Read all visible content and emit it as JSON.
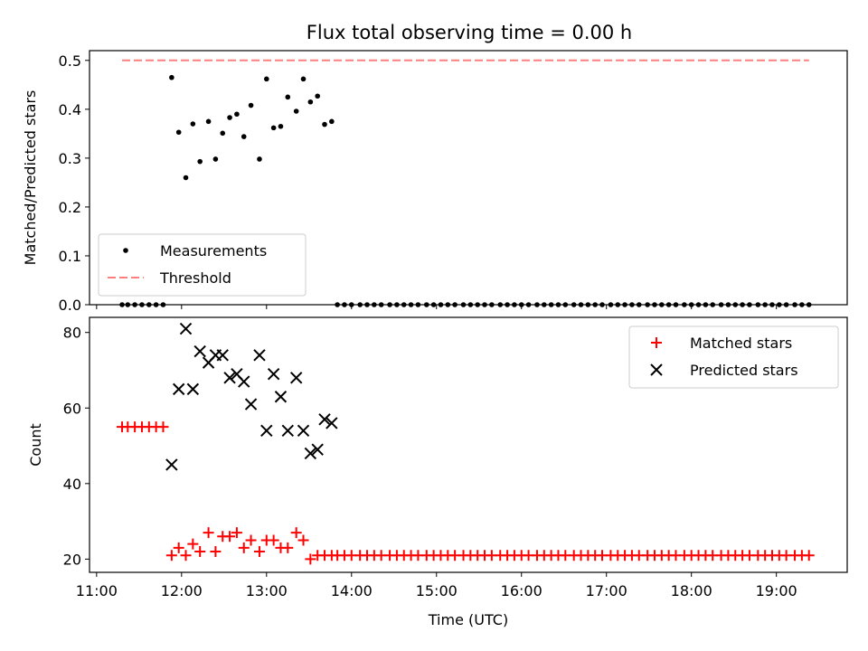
{
  "title": "Flux total observing time = 0.00 h",
  "colors": {
    "measurement": "#000000",
    "threshold": "#ff7f7f",
    "matched": "#ff0000",
    "predicted": "#000000"
  },
  "chart_data": [
    {
      "type": "scatter",
      "title": "Flux total observing time = 0.00 h",
      "xlabel": "",
      "ylabel": "Matched/Predicted stars",
      "xlim": [
        "10:55",
        "19:50"
      ],
      "ylim": [
        0,
        0.52
      ],
      "yticks": [
        "0.0",
        "0.1",
        "0.2",
        "0.3",
        "0.4",
        "0.5"
      ],
      "legend": {
        "position": "lower-left",
        "entries": [
          "Measurements",
          "Threshold"
        ]
      },
      "series": [
        {
          "name": "Measurements",
          "marker": "dot",
          "x": [
            "11:18",
            "11:22",
            "11:27",
            "11:32",
            "11:37",
            "11:42",
            "11:47",
            "11:53",
            "11:58",
            "12:03",
            "12:08",
            "12:13",
            "12:19",
            "12:24",
            "12:29",
            "12:34",
            "12:39",
            "12:44",
            "12:49",
            "12:55",
            "13:00",
            "13:05",
            "13:10",
            "13:15",
            "13:21",
            "13:26",
            "13:31",
            "13:36",
            "13:41",
            "13:46",
            "13:50",
            "13:55",
            "14:00",
            "14:06",
            "14:11",
            "14:16",
            "14:21",
            "14:27",
            "14:32",
            "14:37",
            "14:42",
            "14:47",
            "14:53",
            "14:58",
            "15:03",
            "15:08",
            "15:13",
            "15:19",
            "15:24",
            "15:29",
            "15:34",
            "15:39",
            "15:45",
            "15:50",
            "15:55",
            "16:00",
            "16:05",
            "16:11",
            "16:16",
            "16:21",
            "16:26",
            "16:31",
            "16:37",
            "16:42",
            "16:47",
            "16:52",
            "16:57",
            "17:03",
            "17:08",
            "17:13",
            "17:18",
            "17:23",
            "17:29",
            "17:34",
            "17:39",
            "17:44",
            "17:49",
            "17:55",
            "18:00",
            "18:05",
            "18:10",
            "18:15",
            "18:21",
            "18:26",
            "18:31",
            "18:36",
            "18:41",
            "18:47",
            "18:52",
            "18:57",
            "19:02",
            "19:07",
            "19:13",
            "19:18",
            "19:23"
          ],
          "y": [
            0,
            0,
            0,
            0,
            0,
            0,
            0,
            0.465,
            0.353,
            0.26,
            0.37,
            0.293,
            0.375,
            0.298,
            0.351,
            0.383,
            0.39,
            0.344,
            0.408,
            0.298,
            0.462,
            0.362,
            0.365,
            0.425,
            0.396,
            0.462,
            0.415,
            0.427,
            0.369,
            0.375,
            0,
            0,
            0,
            0,
            0,
            0,
            0,
            0,
            0,
            0,
            0,
            0,
            0,
            0,
            0,
            0,
            0,
            0,
            0,
            0,
            0,
            0,
            0,
            0,
            0,
            0,
            0,
            0,
            0,
            0,
            0,
            0,
            0,
            0,
            0,
            0,
            0,
            0,
            0,
            0,
            0,
            0,
            0,
            0,
            0,
            0,
            0,
            0,
            0,
            0,
            0,
            0,
            0,
            0,
            0,
            0,
            0,
            0,
            0,
            0,
            0,
            0,
            0,
            0,
            0
          ]
        },
        {
          "name": "Threshold",
          "style": "dashed-line",
          "x": [
            "11:18",
            "19:23"
          ],
          "y": [
            0.5,
            0.5
          ]
        }
      ]
    },
    {
      "type": "scatter",
      "xlabel": "Time (UTC)",
      "ylabel": "Count",
      "xlim": [
        "10:55",
        "19:50"
      ],
      "ylim": [
        16.5,
        84
      ],
      "xticks": [
        "11:00",
        "12:00",
        "13:00",
        "14:00",
        "15:00",
        "16:00",
        "17:00",
        "18:00",
        "19:00"
      ],
      "yticks": [
        "20",
        "40",
        "60",
        "80"
      ],
      "legend": {
        "position": "top-right",
        "entries": [
          "Matched stars",
          "Predicted stars"
        ]
      },
      "series": [
        {
          "name": "Matched stars",
          "marker": "plus",
          "x": [
            "11:18",
            "11:22",
            "11:27",
            "11:32",
            "11:37",
            "11:42",
            "11:47",
            "11:53",
            "11:58",
            "12:03",
            "12:08",
            "12:13",
            "12:19",
            "12:24",
            "12:29",
            "12:34",
            "12:39",
            "12:44",
            "12:49",
            "12:55",
            "13:00",
            "13:05",
            "13:10",
            "13:15",
            "13:21",
            "13:26",
            "13:31",
            "13:36",
            "13:41",
            "13:46",
            "13:50",
            "13:55",
            "14:00",
            "14:06",
            "14:11",
            "14:16",
            "14:21",
            "14:27",
            "14:32",
            "14:37",
            "14:42",
            "14:47",
            "14:53",
            "14:58",
            "15:03",
            "15:08",
            "15:13",
            "15:19",
            "15:24",
            "15:29",
            "15:34",
            "15:39",
            "15:45",
            "15:50",
            "15:55",
            "16:00",
            "16:05",
            "16:11",
            "16:16",
            "16:21",
            "16:26",
            "16:31",
            "16:37",
            "16:42",
            "16:47",
            "16:52",
            "16:57",
            "17:03",
            "17:08",
            "17:13",
            "17:18",
            "17:23",
            "17:29",
            "17:34",
            "17:39",
            "17:44",
            "17:49",
            "17:55",
            "18:00",
            "18:05",
            "18:10",
            "18:15",
            "18:21",
            "18:26",
            "18:31",
            "18:36",
            "18:41",
            "18:47",
            "18:52",
            "18:57",
            "19:02",
            "19:07",
            "19:13",
            "19:18",
            "19:23"
          ],
          "y": [
            55,
            55,
            55,
            55,
            55,
            55,
            55,
            21,
            23,
            21,
            24,
            22,
            27,
            22,
            26,
            26,
            27,
            23,
            25,
            22,
            25,
            25,
            23,
            23,
            27,
            25,
            20,
            21,
            21,
            21,
            21,
            21,
            21,
            21,
            21,
            21,
            21,
            21,
            21,
            21,
            21,
            21,
            21,
            21,
            21,
            21,
            21,
            21,
            21,
            21,
            21,
            21,
            21,
            21,
            21,
            21,
            21,
            21,
            21,
            21,
            21,
            21,
            21,
            21,
            21,
            21,
            21,
            21,
            21,
            21,
            21,
            21,
            21,
            21,
            21,
            21,
            21,
            21,
            21,
            21,
            21,
            21,
            21,
            21,
            21,
            21,
            21,
            21,
            21,
            21,
            21,
            21,
            21,
            21,
            21
          ]
        },
        {
          "name": "Predicted stars",
          "marker": "x",
          "x": [
            "11:53",
            "11:58",
            "12:03",
            "12:08",
            "12:13",
            "12:19",
            "12:24",
            "12:29",
            "12:34",
            "12:39",
            "12:44",
            "12:49",
            "12:55",
            "13:00",
            "13:05",
            "13:10",
            "13:15",
            "13:21",
            "13:26",
            "13:31",
            "13:36",
            "13:41",
            "13:46"
          ],
          "y": [
            45,
            65,
            81,
            65,
            75,
            72,
            74,
            74,
            68,
            69,
            67,
            61,
            74,
            54,
            69,
            63,
            54,
            68,
            54,
            48,
            49,
            57,
            56
          ]
        }
      ]
    }
  ]
}
